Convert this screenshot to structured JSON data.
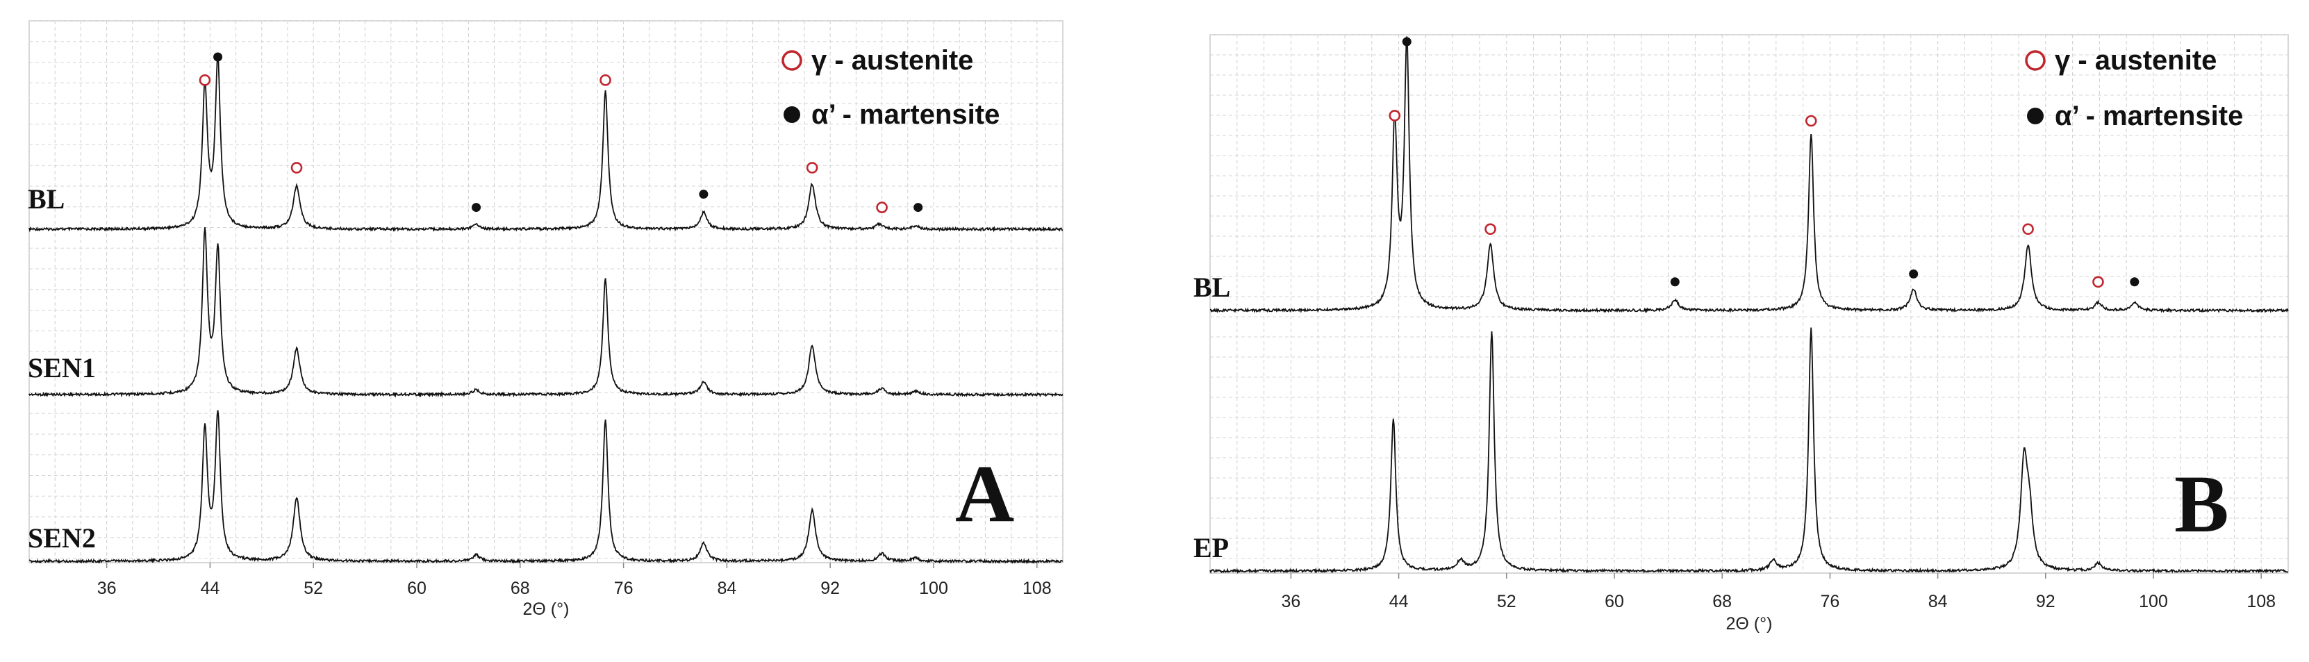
{
  "chart_data": [
    {
      "type": "line",
      "panel_label": "A",
      "xlabel": "2Θ (°)",
      "xlim": [
        30,
        110
      ],
      "x_ticks": [
        36,
        44,
        52,
        60,
        68,
        76,
        84,
        92,
        100,
        108
      ],
      "legend": [
        {
          "symbol": "open-circle",
          "color": "#c0262d",
          "label": "γ - austenite"
        },
        {
          "symbol": "filled-circle",
          "color": "#111111",
          "label": "α’ - martensite"
        }
      ],
      "series": [
        {
          "name": "BL",
          "peaks": [
            {
              "x": 43.6,
              "height": 0.84
            },
            {
              "x": 44.6,
              "height": 1.0
            },
            {
              "x": 50.7,
              "height": 0.26
            },
            {
              "x": 64.6,
              "height": 0.03
            },
            {
              "x": 74.6,
              "height": 0.83
            },
            {
              "x": 82.2,
              "height": 0.1
            },
            {
              "x": 90.6,
              "height": 0.27
            },
            {
              "x": 95.8,
              "height": 0.03
            },
            {
              "x": 98.6,
              "height": 0.02
            }
          ]
        },
        {
          "name": "SEN1",
          "peaks": [
            {
              "x": 43.6,
              "height": 1.0
            },
            {
              "x": 44.6,
              "height": 0.9
            },
            {
              "x": 50.7,
              "height": 0.29
            },
            {
              "x": 64.6,
              "height": 0.03
            },
            {
              "x": 74.6,
              "height": 0.73
            },
            {
              "x": 82.2,
              "height": 0.08
            },
            {
              "x": 90.6,
              "height": 0.31
            },
            {
              "x": 96.0,
              "height": 0.04
            },
            {
              "x": 98.6,
              "height": 0.02
            }
          ]
        },
        {
          "name": "SEN2",
          "peaks": [
            {
              "x": 43.6,
              "height": 0.85
            },
            {
              "x": 44.6,
              "height": 0.94
            },
            {
              "x": 50.7,
              "height": 0.41
            },
            {
              "x": 64.6,
              "height": 0.04
            },
            {
              "x": 74.6,
              "height": 0.92
            },
            {
              "x": 82.2,
              "height": 0.12
            },
            {
              "x": 90.6,
              "height": 0.33
            },
            {
              "x": 96.0,
              "height": 0.05
            },
            {
              "x": 98.6,
              "height": 0.02
            }
          ]
        }
      ],
      "markers": [
        {
          "phase": "austenite",
          "x": 43.6,
          "y_frac": 0.86
        },
        {
          "phase": "martensite",
          "x": 44.6,
          "y_frac": 1.0
        },
        {
          "phase": "austenite",
          "x": 50.7,
          "y_frac": 0.33
        },
        {
          "phase": "martensite",
          "x": 64.6,
          "y_frac": 0.09
        },
        {
          "phase": "austenite",
          "x": 74.6,
          "y_frac": 0.86
        },
        {
          "phase": "martensite",
          "x": 82.2,
          "y_frac": 0.17
        },
        {
          "phase": "austenite",
          "x": 90.6,
          "y_frac": 0.33
        },
        {
          "phase": "austenite",
          "x": 96.0,
          "y_frac": 0.09
        },
        {
          "phase": "martensite",
          "x": 98.8,
          "y_frac": 0.09
        }
      ]
    },
    {
      "type": "line",
      "panel_label": "B",
      "xlabel": "2Θ (°)",
      "xlim": [
        30,
        110
      ],
      "x_ticks": [
        36,
        44,
        52,
        60,
        68,
        76,
        84,
        92,
        100,
        108
      ],
      "legend": [
        {
          "symbol": "open-circle",
          "color": "#c0262d",
          "label": "γ - austenite"
        },
        {
          "symbol": "filled-circle",
          "color": "#111111",
          "label": "α’ - martensite"
        }
      ],
      "series": [
        {
          "name": "BL",
          "peaks": [
            {
              "x": 43.7,
              "height": 0.7
            },
            {
              "x": 44.6,
              "height": 1.0
            },
            {
              "x": 50.8,
              "height": 0.25
            },
            {
              "x": 64.5,
              "height": 0.04
            },
            {
              "x": 74.6,
              "height": 0.67
            },
            {
              "x": 82.2,
              "height": 0.08
            },
            {
              "x": 90.7,
              "height": 0.25
            },
            {
              "x": 95.9,
              "height": 0.03
            },
            {
              "x": 98.6,
              "height": 0.03
            }
          ]
        },
        {
          "name": "EP",
          "peaks": [
            {
              "x": 43.6,
              "height": 0.61
            },
            {
              "x": 50.9,
              "height": 0.96
            },
            {
              "x": 48.6,
              "height": 0.04
            },
            {
              "x": 71.8,
              "height": 0.04
            },
            {
              "x": 74.6,
              "height": 0.97
            },
            {
              "x": 90.4,
              "height": 0.42
            },
            {
              "x": 90.8,
              "height": 0.2
            },
            {
              "x": 95.9,
              "height": 0.03
            }
          ]
        }
      ],
      "markers": [
        {
          "phase": "austenite",
          "x": 43.7,
          "y_frac": 0.72
        },
        {
          "phase": "martensite",
          "x": 44.6,
          "y_frac": 1.0
        },
        {
          "phase": "austenite",
          "x": 50.8,
          "y_frac": 0.29
        },
        {
          "phase": "martensite",
          "x": 64.5,
          "y_frac": 0.09
        },
        {
          "phase": "austenite",
          "x": 74.6,
          "y_frac": 0.7
        },
        {
          "phase": "martensite",
          "x": 82.2,
          "y_frac": 0.12
        },
        {
          "phase": "austenite",
          "x": 90.7,
          "y_frac": 0.29
        },
        {
          "phase": "austenite",
          "x": 95.9,
          "y_frac": 0.09
        },
        {
          "phase": "martensite",
          "x": 98.6,
          "y_frac": 0.09
        }
      ]
    }
  ]
}
